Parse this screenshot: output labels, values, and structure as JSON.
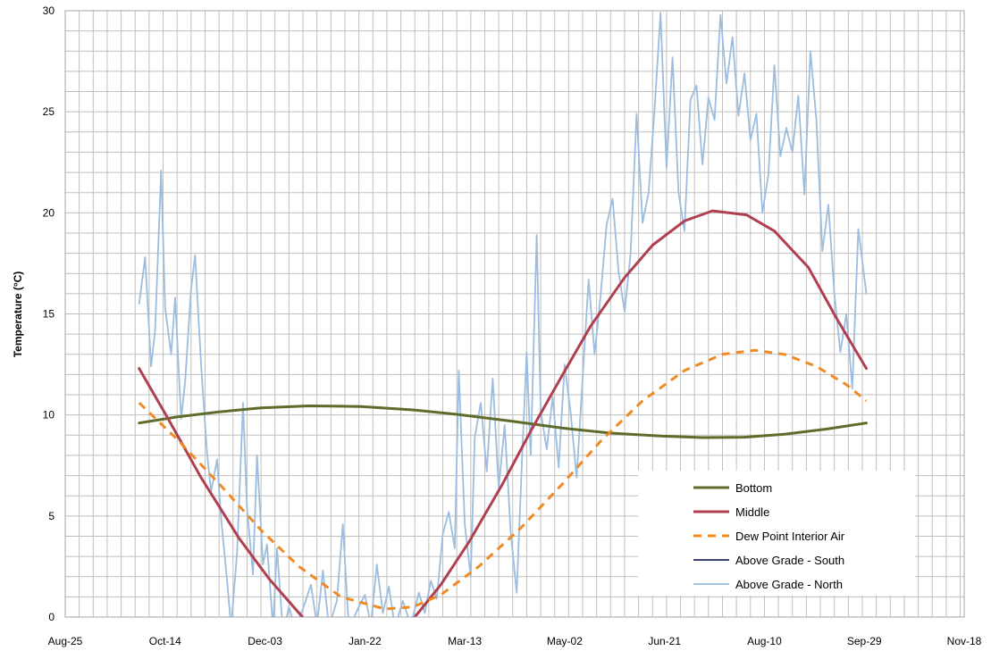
{
  "chart_data": {
    "type": "line",
    "title": "",
    "xlabel": "",
    "ylabel": "Temperature (°C)",
    "ylim": [
      0,
      30
    ],
    "yticks": [
      0,
      5,
      10,
      15,
      20,
      25,
      30
    ],
    "xlim": [
      "2010-08-25",
      "2011-11-18"
    ],
    "xticks": [
      "Aug-25",
      "Oct-14",
      "Dec-03",
      "Jan-22",
      "Mar-13",
      "May-02",
      "Jun-21",
      "Aug-10",
      "Sep-29",
      "Nov-18"
    ],
    "xtick_dates": [
      "2010-08-25",
      "2010-10-14",
      "2010-12-03",
      "2011-01-22",
      "2011-03-13",
      "2011-05-02",
      "2011-06-21",
      "2011-08-10",
      "2011-09-29",
      "2011-11-18"
    ],
    "grid": true,
    "legend_position": "bottom-right",
    "series": [
      {
        "name": "Bottom",
        "color": "#5e6b2a",
        "style": "solid",
        "points": [
          [
            "2010-10-01",
            9.6
          ],
          [
            "2010-10-20",
            9.9
          ],
          [
            "2010-11-10",
            10.15
          ],
          [
            "2010-12-01",
            10.35
          ],
          [
            "2010-12-25",
            10.45
          ],
          [
            "2011-01-20",
            10.42
          ],
          [
            "2011-02-15",
            10.25
          ],
          [
            "2011-03-10",
            10.02
          ],
          [
            "2011-04-05",
            9.7
          ],
          [
            "2011-05-01",
            9.35
          ],
          [
            "2011-05-25",
            9.1
          ],
          [
            "2011-06-20",
            8.95
          ],
          [
            "2011-07-10",
            8.88
          ],
          [
            "2011-07-31",
            8.9
          ],
          [
            "2011-08-20",
            9.05
          ],
          [
            "2011-09-10",
            9.3
          ],
          [
            "2011-09-30",
            9.6
          ]
        ]
      },
      {
        "name": "Middle",
        "color": "#b04050",
        "style": "solid",
        "points": [
          [
            "2010-10-01",
            12.3
          ],
          [
            "2010-10-15",
            9.9
          ],
          [
            "2010-11-01",
            6.9
          ],
          [
            "2010-11-20",
            3.9
          ],
          [
            "2010-12-05",
            1.9
          ],
          [
            "2010-12-20",
            0.2
          ],
          [
            "2010-12-31",
            -1.0
          ],
          [
            "2011-02-01",
            -1.5
          ],
          [
            "2011-02-16",
            0.0
          ],
          [
            "2011-03-01",
            1.6
          ],
          [
            "2011-03-15",
            3.7
          ],
          [
            "2011-04-01",
            6.6
          ],
          [
            "2011-04-15",
            9.2
          ],
          [
            "2011-05-01",
            12.0
          ],
          [
            "2011-05-15",
            14.4
          ],
          [
            "2011-06-01",
            16.8
          ],
          [
            "2011-06-15",
            18.4
          ],
          [
            "2011-07-01",
            19.6
          ],
          [
            "2011-07-15",
            20.1
          ],
          [
            "2011-08-01",
            19.9
          ],
          [
            "2011-08-15",
            19.1
          ],
          [
            "2011-09-01",
            17.3
          ],
          [
            "2011-09-15",
            14.8
          ],
          [
            "2011-09-30",
            12.3
          ]
        ]
      },
      {
        "name": "Dew Point Interior Air",
        "color": "#f08a24",
        "style": "dashed",
        "points": [
          [
            "2010-10-01",
            10.6
          ],
          [
            "2010-10-20",
            8.8
          ],
          [
            "2010-11-10",
            6.6
          ],
          [
            "2010-12-01",
            4.3
          ],
          [
            "2010-12-20",
            2.5
          ],
          [
            "2011-01-10",
            1.0
          ],
          [
            "2011-02-01",
            0.4
          ],
          [
            "2011-02-15",
            0.5
          ],
          [
            "2011-03-01",
            1.1
          ],
          [
            "2011-03-20",
            2.5
          ],
          [
            "2011-04-10",
            4.4
          ],
          [
            "2011-05-01",
            6.6
          ],
          [
            "2011-05-20",
            8.7
          ],
          [
            "2011-06-10",
            10.7
          ],
          [
            "2011-07-01",
            12.2
          ],
          [
            "2011-07-20",
            13.0
          ],
          [
            "2011-08-05",
            13.2
          ],
          [
            "2011-08-20",
            13.0
          ],
          [
            "2011-09-05",
            12.4
          ],
          [
            "2011-09-20",
            11.5
          ],
          [
            "2011-09-30",
            10.7
          ]
        ]
      },
      {
        "name": "Above Grade - South",
        "color": "#1f2a5c",
        "style": "solid",
        "points": []
      },
      {
        "name": "Above Grade - North",
        "color": "#9bbde0",
        "style": "solid",
        "points": [
          [
            "2010-10-01",
            15.5
          ],
          [
            "2010-10-04",
            17.8
          ],
          [
            "2010-10-07",
            12.4
          ],
          [
            "2010-10-09",
            14.2
          ],
          [
            "2010-10-12",
            22.1
          ],
          [
            "2010-10-14",
            15.3
          ],
          [
            "2010-10-17",
            13.0
          ],
          [
            "2010-10-19",
            15.8
          ],
          [
            "2010-10-22",
            9.8
          ],
          [
            "2010-10-24",
            11.6
          ],
          [
            "2010-10-27",
            16.2
          ],
          [
            "2010-10-29",
            17.9
          ],
          [
            "2010-11-01",
            12.5
          ],
          [
            "2010-11-04",
            8.1
          ],
          [
            "2010-11-06",
            6.2
          ],
          [
            "2010-11-09",
            7.8
          ],
          [
            "2010-11-11",
            4.9
          ],
          [
            "2010-11-14",
            1.8
          ],
          [
            "2010-11-16",
            -0.5
          ],
          [
            "2010-11-19",
            3.2
          ],
          [
            "2010-11-22",
            10.6
          ],
          [
            "2010-11-24",
            5.4
          ],
          [
            "2010-11-27",
            2.1
          ],
          [
            "2010-11-29",
            8.0
          ],
          [
            "2010-12-02",
            2.6
          ],
          [
            "2010-12-04",
            3.6
          ],
          [
            "2010-12-07",
            -0.5
          ],
          [
            "2010-12-09",
            3.4
          ],
          [
            "2010-12-12",
            -0.8
          ],
          [
            "2010-12-15",
            0.5
          ],
          [
            "2010-12-18",
            -0.5
          ],
          [
            "2010-12-22",
            0.4
          ],
          [
            "2010-12-26",
            1.6
          ],
          [
            "2010-12-29",
            -0.4
          ],
          [
            "2011-01-01",
            2.3
          ],
          [
            "2011-01-04",
            -0.5
          ],
          [
            "2011-01-08",
            0.8
          ],
          [
            "2011-01-11",
            4.6
          ],
          [
            "2011-01-14",
            -0.6
          ],
          [
            "2011-01-18",
            0.3
          ],
          [
            "2011-01-22",
            1.1
          ],
          [
            "2011-01-25",
            -0.4
          ],
          [
            "2011-01-28",
            2.6
          ],
          [
            "2011-01-31",
            0.2
          ],
          [
            "2011-02-03",
            1.5
          ],
          [
            "2011-02-06",
            -0.5
          ],
          [
            "2011-02-10",
            0.8
          ],
          [
            "2011-02-14",
            -0.4
          ],
          [
            "2011-02-18",
            1.2
          ],
          [
            "2011-02-21",
            0.2
          ],
          [
            "2011-02-24",
            1.8
          ],
          [
            "2011-02-27",
            0.9
          ],
          [
            "2011-03-02",
            4.1
          ],
          [
            "2011-03-05",
            5.2
          ],
          [
            "2011-03-08",
            3.4
          ],
          [
            "2011-03-10",
            12.2
          ],
          [
            "2011-03-13",
            4.6
          ],
          [
            "2011-03-16",
            2.0
          ],
          [
            "2011-03-18",
            8.9
          ],
          [
            "2011-03-21",
            10.6
          ],
          [
            "2011-03-24",
            7.2
          ],
          [
            "2011-03-27",
            11.8
          ],
          [
            "2011-03-30",
            6.4
          ],
          [
            "2011-04-02",
            9.5
          ],
          [
            "2011-04-05",
            4.2
          ],
          [
            "2011-04-08",
            1.2
          ],
          [
            "2011-04-11",
            8.6
          ],
          [
            "2011-04-13",
            13.1
          ],
          [
            "2011-04-15",
            8.0
          ],
          [
            "2011-04-18",
            18.9
          ],
          [
            "2011-04-20",
            10.2
          ],
          [
            "2011-04-23",
            8.3
          ],
          [
            "2011-04-26",
            10.9
          ],
          [
            "2011-04-29",
            7.4
          ],
          [
            "2011-05-02",
            12.5
          ],
          [
            "2011-05-05",
            10.1
          ],
          [
            "2011-05-08",
            6.9
          ],
          [
            "2011-05-11",
            11.8
          ],
          [
            "2011-05-14",
            16.7
          ],
          [
            "2011-05-17",
            13.0
          ],
          [
            "2011-05-20",
            15.9
          ],
          [
            "2011-05-23",
            19.4
          ],
          [
            "2011-05-26",
            20.7
          ],
          [
            "2011-05-29",
            17.1
          ],
          [
            "2011-06-01",
            15.1
          ],
          [
            "2011-06-04",
            18.0
          ],
          [
            "2011-06-07",
            24.9
          ],
          [
            "2011-06-10",
            19.5
          ],
          [
            "2011-06-13",
            21.0
          ],
          [
            "2011-06-16",
            25.1
          ],
          [
            "2011-06-19",
            29.9
          ],
          [
            "2011-06-22",
            22.2
          ],
          [
            "2011-06-25",
            27.7
          ],
          [
            "2011-06-28",
            21.0
          ],
          [
            "2011-07-01",
            19.1
          ],
          [
            "2011-07-04",
            25.6
          ],
          [
            "2011-07-07",
            26.3
          ],
          [
            "2011-07-10",
            22.4
          ],
          [
            "2011-07-13",
            25.7
          ],
          [
            "2011-07-16",
            24.6
          ],
          [
            "2011-07-19",
            29.8
          ],
          [
            "2011-07-22",
            26.4
          ],
          [
            "2011-07-25",
            28.7
          ],
          [
            "2011-07-28",
            24.8
          ],
          [
            "2011-07-31",
            26.9
          ],
          [
            "2011-08-03",
            23.6
          ],
          [
            "2011-08-06",
            24.9
          ],
          [
            "2011-08-09",
            20.0
          ],
          [
            "2011-08-12",
            21.9
          ],
          [
            "2011-08-15",
            27.3
          ],
          [
            "2011-08-18",
            22.8
          ],
          [
            "2011-08-21",
            24.2
          ],
          [
            "2011-08-24",
            23.0
          ],
          [
            "2011-08-27",
            25.8
          ],
          [
            "2011-08-30",
            20.9
          ],
          [
            "2011-09-02",
            28.0
          ],
          [
            "2011-09-05",
            24.6
          ],
          [
            "2011-09-08",
            18.1
          ],
          [
            "2011-09-11",
            20.4
          ],
          [
            "2011-09-14",
            16.0
          ],
          [
            "2011-09-17",
            13.1
          ],
          [
            "2011-09-20",
            15.0
          ],
          [
            "2011-09-23",
            11.3
          ],
          [
            "2011-09-26",
            19.2
          ],
          [
            "2011-09-30",
            16.0
          ]
        ]
      }
    ]
  }
}
